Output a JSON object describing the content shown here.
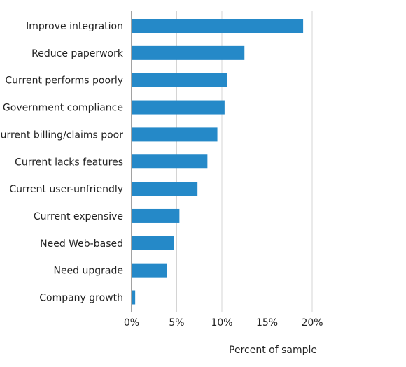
{
  "chart_data": {
    "type": "bar",
    "orientation": "horizontal",
    "categories": [
      "Improve integration",
      "Reduce paperwork",
      "Current performs poorly",
      "Government compliance",
      "Current billing/claims poor",
      "Current lacks features",
      "Current user-unfriendly",
      "Current expensive",
      "Need Web-based",
      "Need upgrade",
      "Company growth"
    ],
    "values": [
      19.0,
      12.5,
      10.6,
      10.3,
      9.5,
      8.4,
      7.3,
      5.3,
      4.7,
      3.9,
      0.4
    ],
    "xlabel": "Percent of sample",
    "xlim": [
      0,
      20
    ],
    "xticks": [
      0,
      5,
      10,
      15,
      20
    ],
    "xtick_labels": [
      "0%",
      "5%",
      "10%",
      "15%",
      "20%"
    ],
    "grid": "vertical",
    "bar_color": "#2589c8",
    "grid_color": "#d4d4d4"
  }
}
